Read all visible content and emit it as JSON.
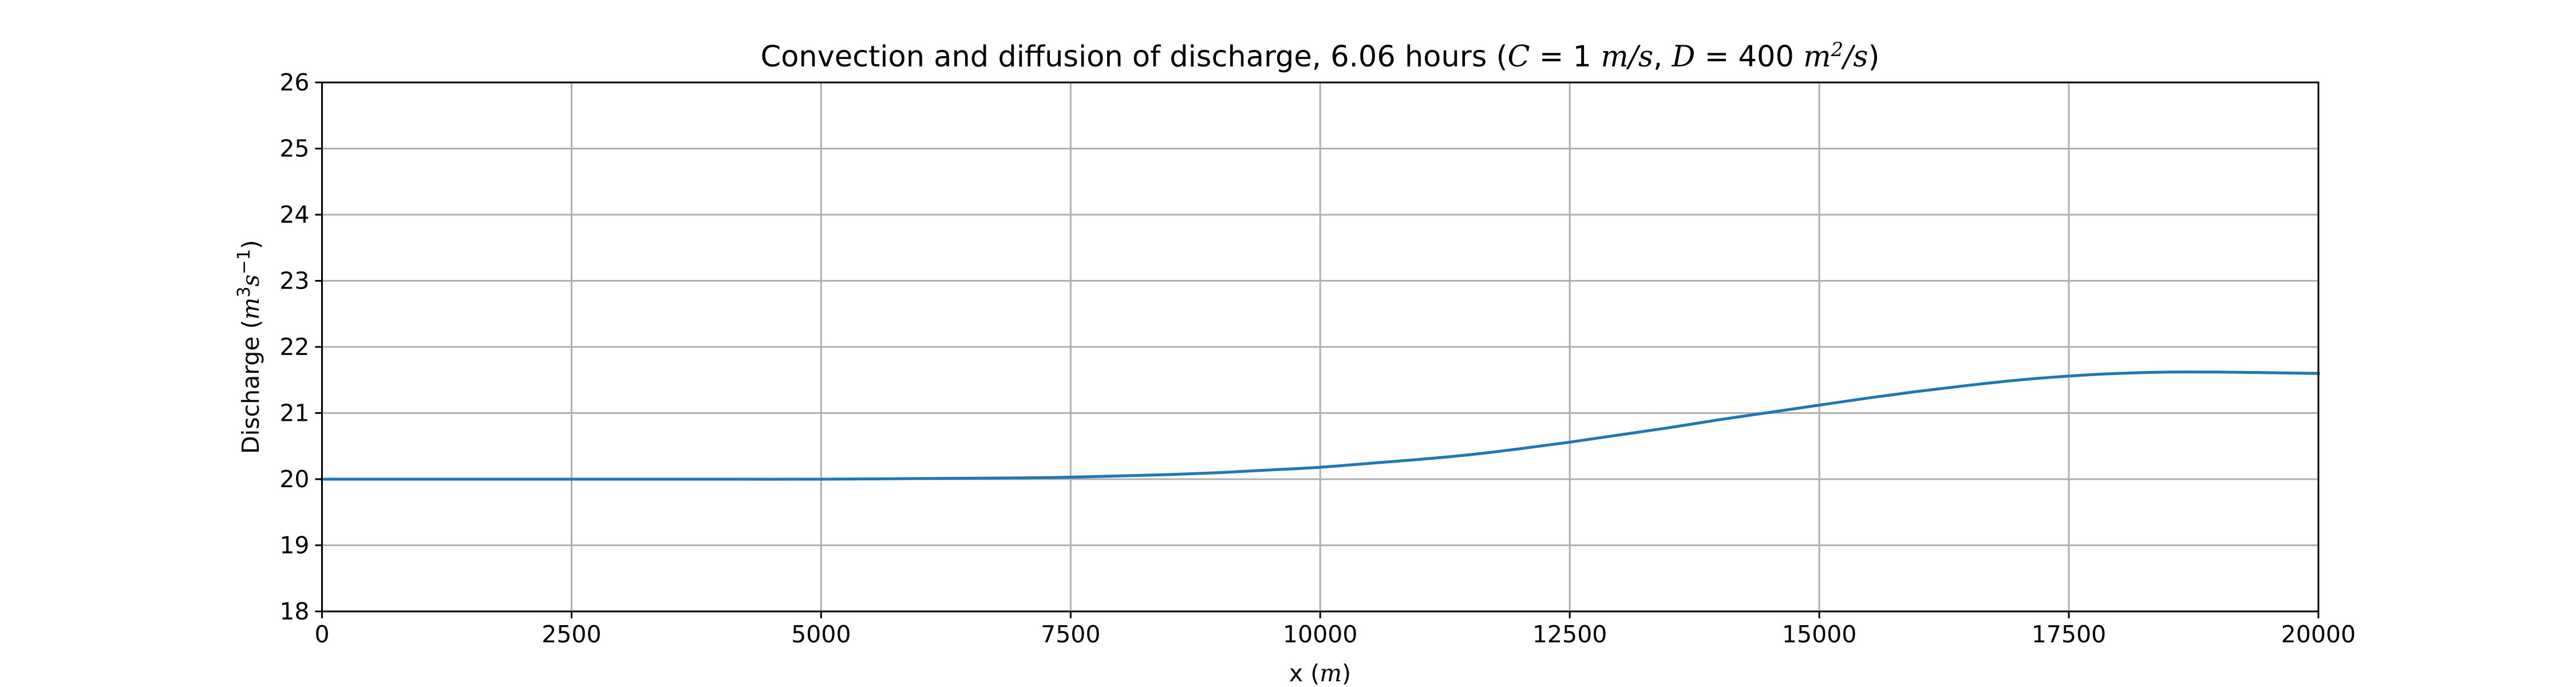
{
  "chart_data": {
    "type": "line",
    "title": {
      "main": "Convection and diffusion of discharge, 6.06 hours (",
      "c_sym": "C",
      "c_val": " = 1 ",
      "c_unit": "m/s",
      "sep": ", ",
      "d_sym": "D",
      "d_val": " = 400 ",
      "d_unit_base": "m",
      "d_unit_exp": "2",
      "d_unit_tail": "/s",
      "close": ")"
    },
    "xlabel": {
      "text": "x (",
      "unit": "m",
      "close": ")"
    },
    "ylabel": {
      "text": "Discharge (",
      "u1": "m",
      "u1_exp": "3",
      "u2": "s",
      "u2_exp": "−1",
      "close": ")"
    },
    "xlim": [
      0,
      20000
    ],
    "ylim": [
      18,
      26
    ],
    "xticks": [
      0,
      2500,
      5000,
      7500,
      10000,
      12500,
      15000,
      17500,
      20000
    ],
    "yticks": [
      18,
      19,
      20,
      21,
      22,
      23,
      24,
      25,
      26
    ],
    "grid": true,
    "series_color": "#1f77b4",
    "x": [
      0,
      1000,
      2000,
      3000,
      4000,
      5000,
      6000,
      7000,
      7500,
      8000,
      8500,
      9000,
      9500,
      10000,
      10500,
      11000,
      11500,
      12000,
      12500,
      13000,
      13500,
      14000,
      14500,
      15000,
      15500,
      16000,
      16500,
      17000,
      17500,
      18000,
      18500,
      19000,
      19500,
      20000
    ],
    "y": [
      20.0,
      20.0,
      20.0,
      20.0,
      20.0,
      20.0,
      20.01,
      20.02,
      20.03,
      20.05,
      20.07,
      20.1,
      20.14,
      20.18,
      20.24,
      20.3,
      20.37,
      20.46,
      20.56,
      20.67,
      20.78,
      20.9,
      21.01,
      21.12,
      21.23,
      21.33,
      21.42,
      21.5,
      21.56,
      21.6,
      21.62,
      21.62,
      21.61,
      21.6
    ]
  }
}
